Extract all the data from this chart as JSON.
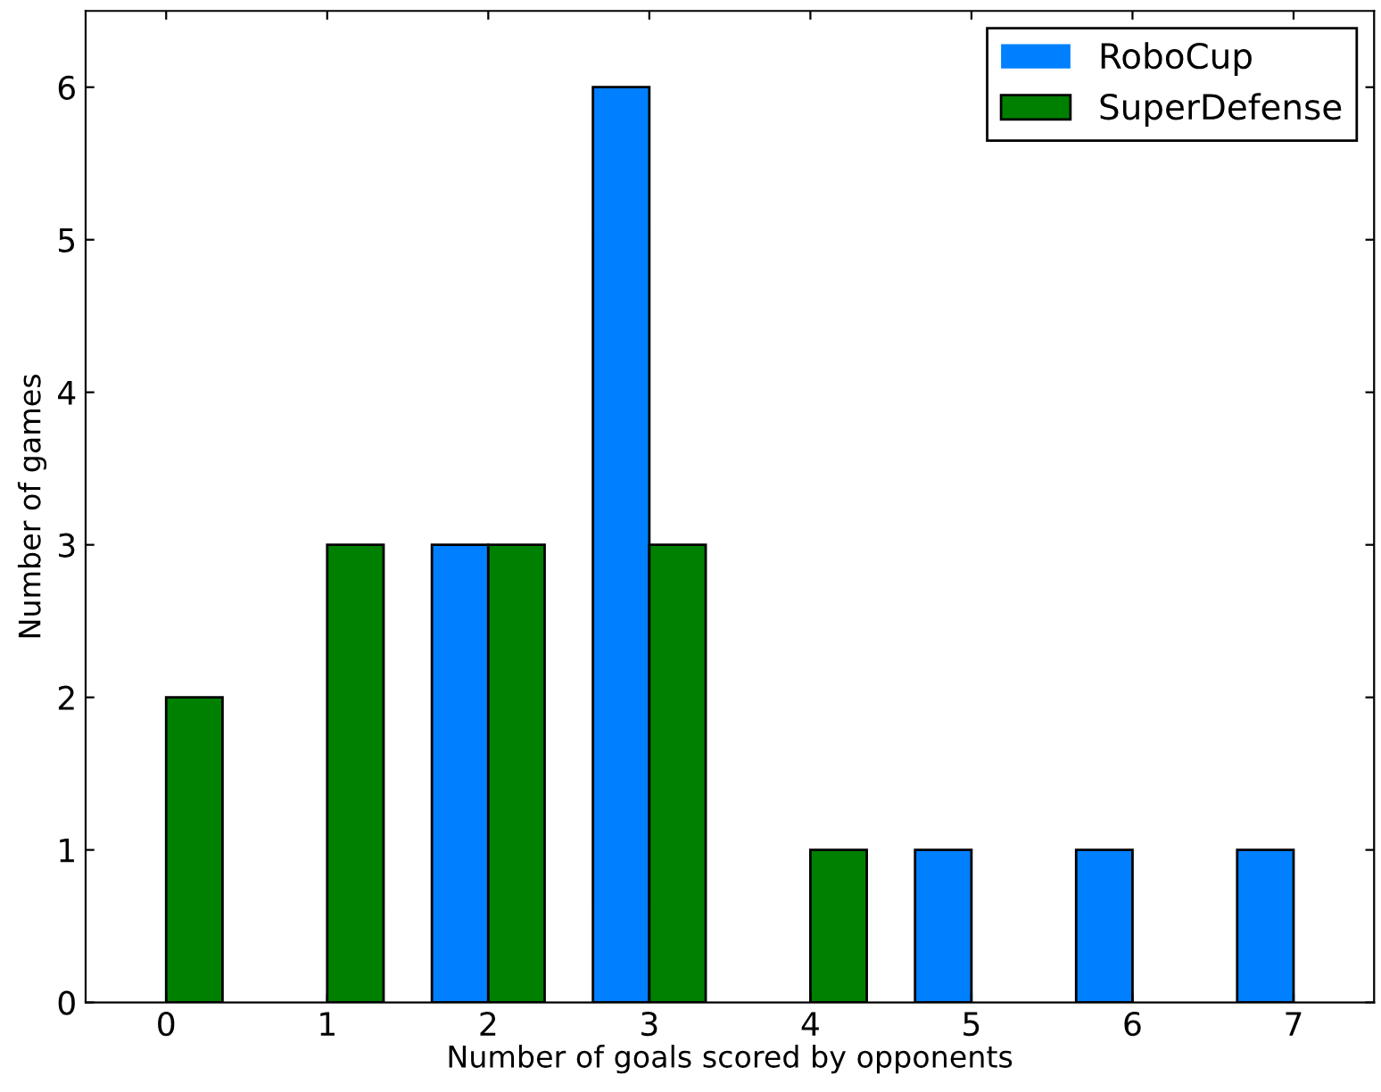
{
  "chart_data": {
    "type": "bar",
    "xlabel": "Number of goals scored by opponents",
    "ylabel": "Number of games",
    "categories": [
      "0",
      "1",
      "2",
      "3",
      "4",
      "5",
      "6",
      "7"
    ],
    "series": [
      {
        "name": "RoboCup",
        "color": "#0080ff",
        "values": [
          0,
          0,
          3,
          6,
          0,
          1,
          1,
          1
        ]
      },
      {
        "name": "SuperDefense",
        "color": "#008000",
        "values": [
          2,
          3,
          3,
          3,
          1,
          0,
          0,
          0
        ]
      }
    ],
    "ylim": [
      0,
      6.5
    ],
    "yticks": [
      0,
      1,
      2,
      3,
      4,
      5,
      6
    ],
    "grid": false,
    "legend": "top right"
  }
}
